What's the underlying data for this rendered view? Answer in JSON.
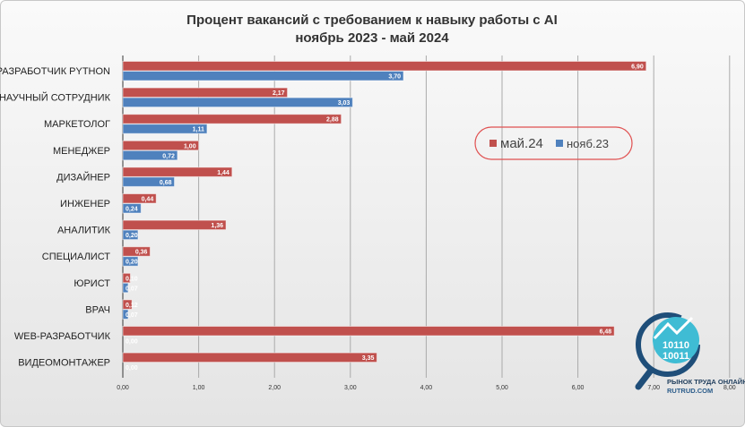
{
  "chart_data": {
    "type": "bar",
    "orientation": "horizontal",
    "title": [
      "Процент вакансий с требованием к навыку работы с AI",
      "ноябрь 2023 - май 2024"
    ],
    "categories": [
      "РАЗРАБОТЧИК PYTHON",
      "НАУЧНЫЙ СОТРУДНИК",
      "МАРКЕТОЛОГ",
      "МЕНЕДЖЕР",
      "ДИЗАЙНЕР",
      "ИНЖЕНЕР",
      "АНАЛИТИК",
      "СПЕЦИАЛИСТ",
      "ЮРИСТ",
      "ВРАЧ",
      "WEB-РАЗРАБОТЧИК",
      "ВИДЕОМОНТАЖЕР"
    ],
    "series": [
      {
        "name": "май.24",
        "color": "#c0504d",
        "values": [
          6.9,
          2.17,
          2.88,
          1.0,
          1.44,
          0.44,
          1.36,
          0.36,
          0.1,
          0.12,
          6.48,
          3.35
        ]
      },
      {
        "name": "нояб.23",
        "color": "#4f81bd",
        "values": [
          3.7,
          3.03,
          1.11,
          0.72,
          0.68,
          0.24,
          0.2,
          0.2,
          0.07,
          0.07,
          0.0,
          0.0
        ]
      }
    ],
    "xlim": [
      0,
      8
    ],
    "xticks": [
      "0,00",
      "1,00",
      "2,00",
      "3,00",
      "4,00",
      "5,00",
      "6,00",
      "7,00",
      "8,00"
    ],
    "grid": true,
    "legend_position": "right-upper"
  },
  "logo": {
    "line1": "РЫНОК ТРУДА ОНЛАЙН",
    "line2": "RUTRUD.COM"
  }
}
